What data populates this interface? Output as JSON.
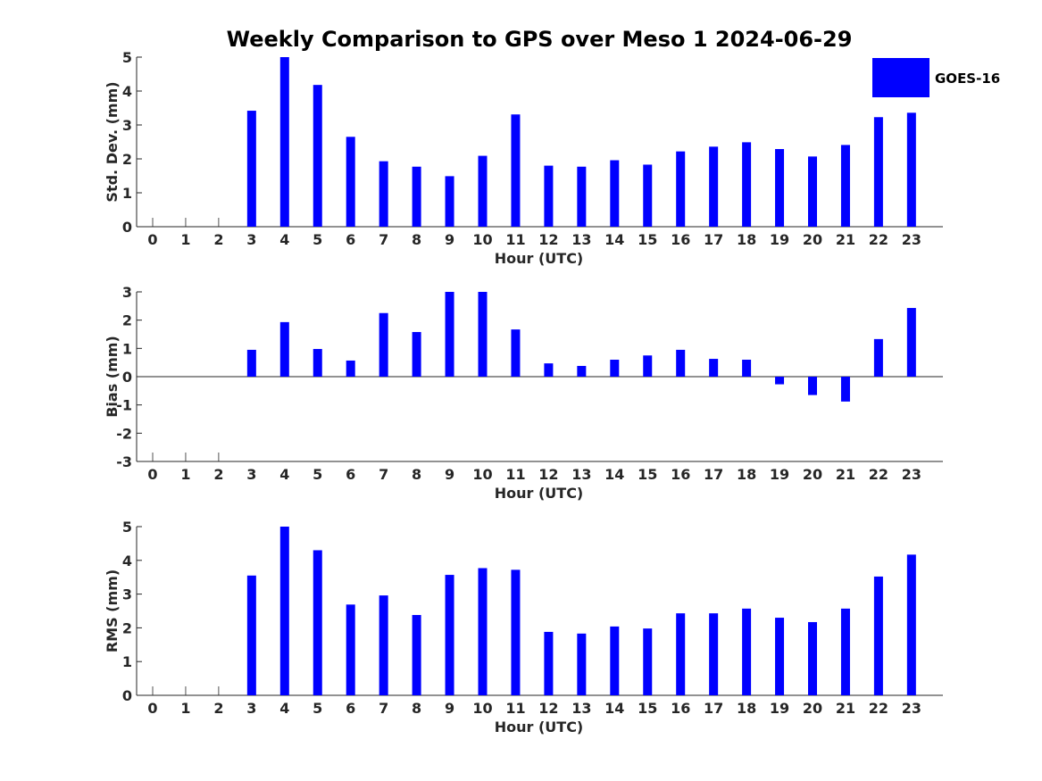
{
  "title": "Weekly Comparison to GPS over Meso 1 2024-06-29",
  "legend": {
    "label": "GOES-16",
    "color": "#0000ff",
    "placement": "top-right"
  },
  "chart_data": [
    {
      "type": "bar",
      "name": "std-dev",
      "series_name": "GOES-16",
      "xlabel": "Hour (UTC)",
      "ylabel": "Std. Dev. (mm)",
      "ylim": [
        0,
        5
      ],
      "yticks": [
        "0",
        "1",
        "2",
        "3",
        "4",
        "5"
      ],
      "categories": [
        "0",
        "1",
        "2",
        "3",
        "4",
        "5",
        "6",
        "7",
        "8",
        "9",
        "10",
        "11",
        "12",
        "13",
        "14",
        "15",
        "16",
        "17",
        "18",
        "19",
        "20",
        "21",
        "22",
        "23"
      ],
      "values": [
        null,
        null,
        null,
        3.42,
        5.0,
        4.18,
        2.65,
        1.93,
        1.77,
        1.49,
        2.09,
        3.31,
        1.8,
        1.77,
        1.96,
        1.83,
        2.22,
        2.36,
        2.49,
        2.29,
        2.07,
        2.41,
        3.23,
        3.36
      ]
    },
    {
      "type": "bar",
      "name": "bias",
      "series_name": "GOES-16",
      "xlabel": "Hour (UTC)",
      "ylabel": "Bias (mm)",
      "ylim": [
        -3,
        3
      ],
      "yticks": [
        "-3",
        "-2",
        "-1",
        "0",
        "1",
        "2",
        "3"
      ],
      "categories": [
        "0",
        "1",
        "2",
        "3",
        "4",
        "5",
        "6",
        "7",
        "8",
        "9",
        "10",
        "11",
        "12",
        "13",
        "14",
        "15",
        "16",
        "17",
        "18",
        "19",
        "20",
        "21",
        "22",
        "23"
      ],
      "values": [
        null,
        null,
        null,
        0.95,
        1.93,
        0.98,
        0.57,
        2.25,
        1.58,
        3.0,
        3.0,
        1.67,
        0.47,
        0.38,
        0.6,
        0.75,
        0.95,
        0.63,
        0.6,
        -0.27,
        -0.65,
        -0.88,
        1.33,
        2.43
      ]
    },
    {
      "type": "bar",
      "name": "rms",
      "series_name": "GOES-16",
      "xlabel": "Hour (UTC)",
      "ylabel": "RMS (mm)",
      "ylim": [
        0,
        5
      ],
      "yticks": [
        "0",
        "1",
        "2",
        "3",
        "4",
        "5"
      ],
      "categories": [
        "0",
        "1",
        "2",
        "3",
        "4",
        "5",
        "6",
        "7",
        "8",
        "9",
        "10",
        "11",
        "12",
        "13",
        "14",
        "15",
        "16",
        "17",
        "18",
        "19",
        "20",
        "21",
        "22",
        "23"
      ],
      "values": [
        null,
        null,
        null,
        3.55,
        5.0,
        4.3,
        2.69,
        2.96,
        2.38,
        3.57,
        3.77,
        3.72,
        1.88,
        1.83,
        2.04,
        1.98,
        2.43,
        2.43,
        2.57,
        2.3,
        2.17,
        2.57,
        3.52,
        4.17
      ]
    }
  ]
}
